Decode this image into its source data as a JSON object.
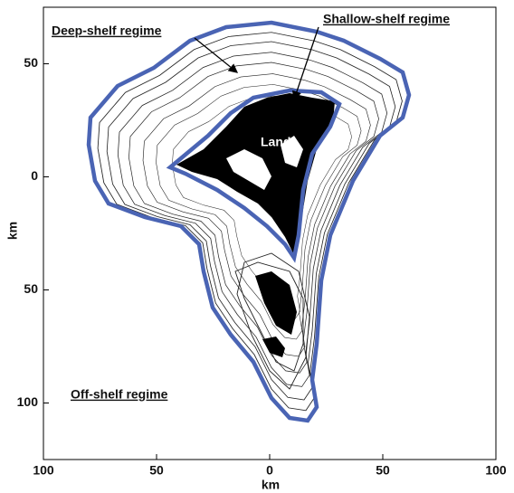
{
  "axes": {
    "x_label": "km",
    "y_label": "km",
    "xlim": [
      -100,
      100
    ],
    "ylim": [
      -125,
      75
    ],
    "xticks": [
      {
        "value": -100,
        "label": "100"
      },
      {
        "value": -50,
        "label": "50"
      },
      0,
      {
        "value": 50,
        "label": "50"
      },
      {
        "value": 100,
        "label": "100"
      }
    ],
    "yticks": [
      {
        "value": 50,
        "label": "50"
      },
      0,
      {
        "value": -50,
        "label": "50"
      },
      {
        "value": -100,
        "label": "100"
      }
    ]
  },
  "annotations": {
    "deep_shelf": "Deep-shelf regime",
    "shallow_shelf": "Shallow-shelf regime",
    "land": "Land",
    "off_shelf": "Off-shelf regime"
  }
}
